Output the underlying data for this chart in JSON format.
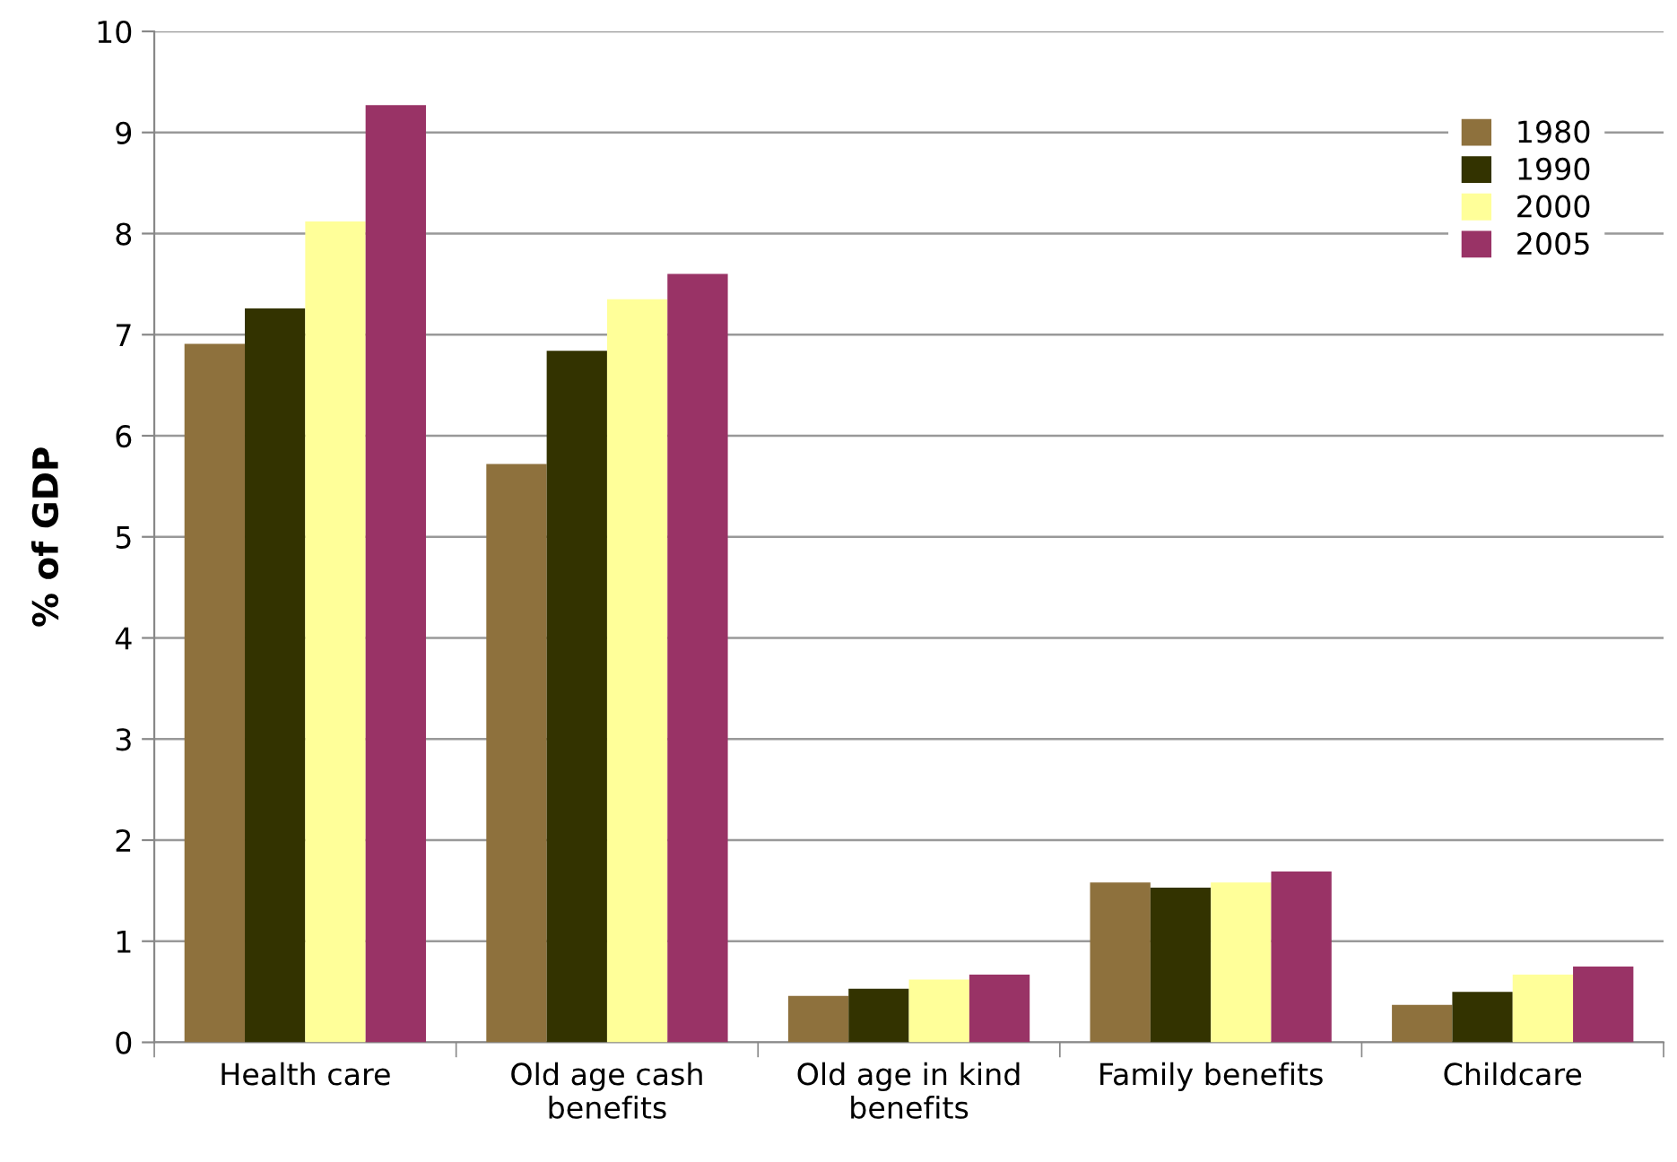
{
  "chart_data": {
    "type": "bar",
    "ylabel": "% of GDP",
    "categories": [
      "Health care",
      "Old age cash\nbenefits",
      "Old age in kind\nbenefits",
      "Family benefits",
      "Childcare"
    ],
    "series": [
      {
        "name": "1980",
        "color": "#8e713d",
        "values": [
          6.91,
          5.72,
          0.46,
          1.58,
          0.37
        ]
      },
      {
        "name": "1990",
        "color": "#333300",
        "values": [
          7.26,
          6.84,
          0.53,
          1.53,
          0.5
        ]
      },
      {
        "name": "2000",
        "color": "#ffff99",
        "values": [
          8.12,
          7.35,
          0.62,
          1.58,
          0.67
        ]
      },
      {
        "name": "2005",
        "color": "#993366",
        "values": [
          9.27,
          7.6,
          0.67,
          1.69,
          0.75
        ]
      }
    ],
    "ylim": [
      0,
      10
    ],
    "yticks": [
      0,
      1,
      2,
      3,
      4,
      5,
      6,
      7,
      8,
      9,
      10
    ],
    "grid": "y",
    "legend": "top right"
  }
}
